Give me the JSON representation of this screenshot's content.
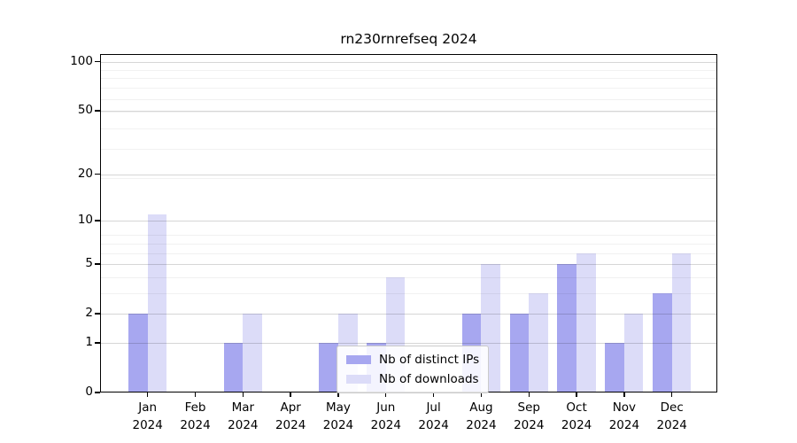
{
  "title": "rn230rnrefseq 2024",
  "chart_data": {
    "type": "bar",
    "title": "rn230rnrefseq 2024",
    "categories": [
      "Jan",
      "Feb",
      "Mar",
      "Apr",
      "May",
      "Jun",
      "Jul",
      "Aug",
      "Sep",
      "Oct",
      "Nov",
      "Dec"
    ],
    "category_year": "2024",
    "series": [
      {
        "name": "Nb of distinct IPs",
        "color": "#a7a7f0",
        "values": [
          2,
          0,
          1,
          0,
          1,
          1,
          0,
          2,
          2,
          5,
          1,
          3
        ]
      },
      {
        "name": "Nb of downloads",
        "color": "#dcdcf8",
        "values": [
          11,
          0,
          2,
          0,
          2,
          4,
          0,
          5,
          3,
          6,
          2,
          6
        ]
      }
    ],
    "xlabel": "",
    "ylabel": "",
    "yscale": "log1p",
    "yticks": [
      0,
      1,
      2,
      5,
      10,
      20,
      50,
      100
    ],
    "minor_yticks": [
      3,
      4,
      6,
      7,
      8,
      19,
      29,
      39,
      49,
      59,
      69,
      79,
      89
    ],
    "ylim": [
      0,
      112
    ],
    "grid": true,
    "legend_position": "lower-center",
    "colors": {
      "background": "#ffffff",
      "axis": "#000000",
      "major_grid": "rgba(0,0,0,0.16)",
      "minor_grid": "rgba(0,0,0,0.055)",
      "text": "#000000"
    }
  }
}
